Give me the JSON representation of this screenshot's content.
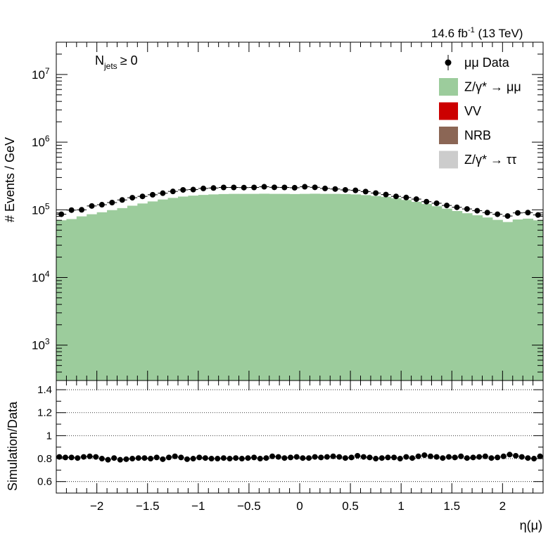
{
  "header": {
    "lumi": "14.6 fb",
    "lumi_exp": "-1",
    "energy": "(13 TeV)",
    "njets_main": "N",
    "njets_sub": "jets",
    "njets_cond": "≥ 0"
  },
  "legend": [
    {
      "label": "μμ Data",
      "marker": "point",
      "color": "#000000"
    },
    {
      "label": "Z/γ* → μμ",
      "marker": "box",
      "color": "#9ccc9c"
    },
    {
      "label": "VV",
      "marker": "box",
      "color": "#cc0000"
    },
    {
      "label": "NRB",
      "marker": "box",
      "color": "#8b6655"
    },
    {
      "label": "Z/γ* → ττ",
      "marker": "box",
      "color": "#cccccc"
    }
  ],
  "chart_data": [
    {
      "type": "bar",
      "panel": "main",
      "title": "",
      "xlabel": "",
      "ylabel": "# Events / GeV",
      "yscale": "log",
      "xlim": [
        -2.4,
        2.4
      ],
      "ylim": [
        300,
        30000000
      ],
      "yticks": [
        {
          "value": 1000,
          "base": "10",
          "exp": "3"
        },
        {
          "value": 10000,
          "base": "10",
          "exp": "4"
        },
        {
          "value": 100000,
          "base": "10",
          "exp": "5"
        },
        {
          "value": 1000000,
          "base": "10",
          "exp": "6"
        },
        {
          "value": 10000000,
          "base": "10",
          "exp": "7"
        }
      ],
      "bin_edges_start": -2.4,
      "bin_width": 0.1,
      "series": [
        {
          "name": "Z/γ* → μμ",
          "kind": "histogram",
          "color": "#9ccc9c",
          "values": [
            70000,
            73000,
            80000,
            86000,
            92000,
            99000,
            106000,
            115000,
            124000,
            133000,
            142000,
            150000,
            157000,
            162000,
            166000,
            169000,
            171000,
            172000,
            172000,
            172000,
            173000,
            172000,
            172000,
            171000,
            172000,
            173000,
            172000,
            172000,
            171000,
            169000,
            165000,
            160000,
            155000,
            148000,
            140000,
            131000,
            122000,
            113000,
            104000,
            96000,
            89000,
            83000,
            77000,
            71000,
            66000,
            72000,
            74000,
            70000
          ]
        },
        {
          "name": "μμ Data",
          "kind": "points",
          "color": "#000000",
          "values": [
            86000,
            99000,
            100000,
            114000,
            119000,
            128000,
            140000,
            151000,
            158000,
            167000,
            176000,
            187000,
            197000,
            199000,
            207000,
            210000,
            214000,
            214000,
            213000,
            214000,
            219000,
            215000,
            214000,
            212000,
            219000,
            215000,
            207000,
            203000,
            197000,
            194000,
            186000,
            177000,
            168000,
            158000,
            152000,
            144000,
            132000,
            125000,
            116000,
            109000,
            103000,
            97000,
            91000,
            86000,
            81000,
            90000,
            91000,
            84000
          ]
        }
      ]
    },
    {
      "type": "scatter",
      "panel": "ratio",
      "title": "",
      "xlabel": "η(μ)",
      "ylabel": "Simulation/Data",
      "xlim": [
        -2.4,
        2.4
      ],
      "ylim": [
        0.5,
        1.48
      ],
      "grid_lines": [
        0.6,
        0.8,
        1.0,
        1.2,
        1.4
      ],
      "yticks": [
        "0.6",
        "0.8",
        "1",
        "1.2",
        "1.4"
      ],
      "xticks": [
        {
          "value": -2,
          "label": "−2"
        },
        {
          "value": -1.5,
          "label": "−1.5"
        },
        {
          "value": -1,
          "label": "−1"
        },
        {
          "value": -0.5,
          "label": "−0.5"
        },
        {
          "value": 0,
          "label": "0"
        },
        {
          "value": 0.5,
          "label": "0.5"
        },
        {
          "value": 1,
          "label": "1"
        },
        {
          "value": 1.5,
          "label": "1.5"
        },
        {
          "value": 2,
          "label": "2"
        }
      ],
      "series": [
        {
          "name": "",
          "values": [
            0.815,
            0.81,
            0.81,
            0.805,
            0.815,
            0.82,
            0.815,
            0.8,
            0.79,
            0.805,
            0.79,
            0.795,
            0.8,
            0.805,
            0.805,
            0.8,
            0.81,
            0.795,
            0.81,
            0.82,
            0.81,
            0.795,
            0.8,
            0.81,
            0.805,
            0.8,
            0.8,
            0.805,
            0.8,
            0.805,
            0.8,
            0.805,
            0.81,
            0.8,
            0.805,
            0.82,
            0.815,
            0.805,
            0.81,
            0.815,
            0.805,
            0.805,
            0.815,
            0.81,
            0.815,
            0.82,
            0.815,
            0.805,
            0.81,
            0.825,
            0.815,
            0.81,
            0.8,
            0.805,
            0.81,
            0.81,
            0.8,
            0.815,
            0.805,
            0.82,
            0.83,
            0.82,
            0.815,
            0.805,
            0.815,
            0.81,
            0.82,
            0.805,
            0.81,
            0.815,
            0.82,
            0.805,
            0.81,
            0.82,
            0.835,
            0.825,
            0.815,
            0.805,
            0.8,
            0.82
          ]
        }
      ]
    }
  ]
}
